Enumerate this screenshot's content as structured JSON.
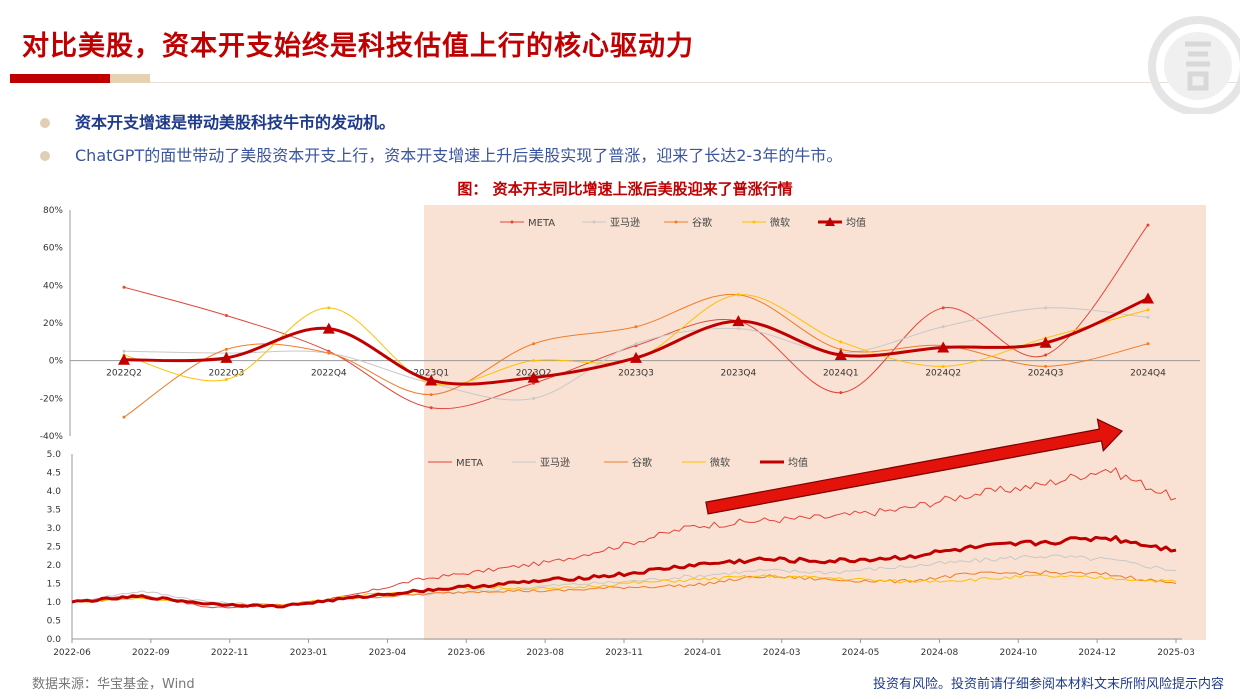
{
  "page": {
    "title": "对比美股，资本开支始终是科技估值上行的核心驱动力",
    "bullets": [
      "资本开支增速是带动美股科技牛市的发动机。",
      "ChatGPT的面世带动了美股资本开支上行，资本开支增速上升后美股实现了普涨，迎来了长达2-3年的牛市。"
    ],
    "chart_heading": "图： 资本开支同比增速上涨后美股迎来了普涨行情",
    "source": "数据来源：华宝基金，Wind",
    "disclaimer": "投资有风险。投资前请仔细参阅本材料文末所附风险提示内容"
  },
  "chart_data": [
    {
      "type": "line",
      "categories": [
        "2022Q2",
        "2022Q3",
        "2022Q4",
        "2023Q1",
        "2023Q2",
        "2023Q3",
        "2023Q4",
        "2024Q1",
        "2024Q2",
        "2024Q3",
        "2024Q4"
      ],
      "ylim": [
        -40,
        80
      ],
      "yticks": [
        "80%",
        "60%",
        "40%",
        "20%",
        "0%",
        "-20%",
        "-40%"
      ],
      "ytick_values": [
        80,
        60,
        40,
        20,
        0,
        -20,
        -40
      ],
      "legend_position": "top",
      "series": [
        {
          "name": "META",
          "color": "#e0453a",
          "width": 1,
          "marker": "dot",
          "values": [
            39,
            24,
            5,
            -25,
            -12,
            8,
            21,
            -17,
            28,
            3,
            72
          ]
        },
        {
          "name": "亚马逊",
          "color": "#c8c8c8",
          "width": 1,
          "marker": "dot",
          "values": [
            5,
            4,
            4,
            -12,
            -20,
            9,
            17,
            4,
            18,
            28,
            23
          ]
        },
        {
          "name": "谷歌",
          "color": "#f07c28",
          "width": 1,
          "marker": "dot",
          "values": [
            -30,
            6,
            4,
            -18,
            9,
            18,
            35,
            6,
            8,
            -3,
            9
          ]
        },
        {
          "name": "微软",
          "color": "#ffc000",
          "width": 1,
          "marker": "dot",
          "values": [
            3,
            -10,
            28,
            -12,
            0,
            1,
            35,
            10,
            -3,
            12,
            27
          ]
        },
        {
          "name": "均值",
          "color": "#c00000",
          "width": 3,
          "marker": "triangle",
          "values": [
            0.5,
            1.5,
            17,
            -10.5,
            -9,
            1.5,
            21,
            3,
            7,
            9.5,
            33
          ]
        }
      ]
    },
    {
      "type": "line",
      "x_ticks": [
        "2022-06",
        "2022-09",
        "2022-11",
        "2023-01",
        "2023-04",
        "2023-06",
        "2023-08",
        "2023-11",
        "2024-01",
        "2024-03",
        "2024-05",
        "2024-08",
        "2024-10",
        "2024-12",
        "2025-03"
      ],
      "ylim": [
        0,
        5
      ],
      "yticks": [
        "5.0",
        "4.5",
        "4.0",
        "3.5",
        "3.0",
        "2.5",
        "2.0",
        "1.5",
        "1.0",
        "0.5",
        "0.0"
      ],
      "ytick_values": [
        5,
        4.5,
        4,
        3.5,
        3,
        2.5,
        2,
        1.5,
        1,
        0.5,
        0
      ],
      "legend_position": "top",
      "shaded_region": {
        "from": "2023-05",
        "to": "2025-03"
      },
      "annotation": "upward-trend-arrow",
      "series": [
        {
          "name": "META",
          "color": "#e0453a",
          "width": 1,
          "values": [
            1.0,
            1.2,
            0.85,
            0.9,
            1.15,
            1.6,
            1.85,
            2.1,
            2.55,
            3.05,
            3.2,
            3.3,
            3.5,
            3.9,
            4.15,
            4.6,
            3.8
          ]
        },
        {
          "name": "亚马逊",
          "color": "#c8c8c8",
          "width": 1,
          "values": [
            1.0,
            1.3,
            1.0,
            0.9,
            1.1,
            1.2,
            1.3,
            1.45,
            1.55,
            1.7,
            1.85,
            1.8,
            1.95,
            2.1,
            2.25,
            2.15,
            1.85
          ]
        },
        {
          "name": "谷歌",
          "color": "#f07c28",
          "width": 1,
          "values": [
            1.0,
            1.15,
            0.95,
            0.92,
            1.1,
            1.2,
            1.3,
            1.3,
            1.4,
            1.45,
            1.7,
            1.6,
            1.55,
            1.75,
            1.8,
            1.75,
            1.5
          ]
        },
        {
          "name": "微软",
          "color": "#ffc000",
          "width": 1,
          "values": [
            1.0,
            1.1,
            0.95,
            0.9,
            1.15,
            1.3,
            1.4,
            1.35,
            1.5,
            1.6,
            1.7,
            1.65,
            1.55,
            1.6,
            1.7,
            1.65,
            1.55
          ]
        },
        {
          "name": "均值",
          "color": "#c00000",
          "width": 3,
          "values": [
            1.0,
            1.15,
            0.95,
            0.88,
            1.1,
            1.3,
            1.45,
            1.6,
            1.75,
            2.0,
            2.15,
            2.1,
            2.2,
            2.45,
            2.6,
            2.75,
            2.4
          ]
        }
      ]
    }
  ],
  "colors": {
    "accent": "#c00000",
    "shade": "#f9e2d4",
    "tan": "#e6d1b3",
    "navy": "#1f3a8a"
  }
}
